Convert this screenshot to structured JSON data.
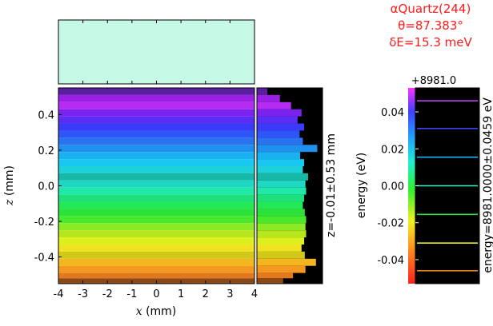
{
  "chart_data": {
    "type": "heatmap",
    "annotation": {
      "crystal": "αQuartz(244)",
      "theta": "θ=87.383°",
      "dE": "δE=15.3 meV"
    },
    "main_plot": {
      "xlabel": "x (mm)",
      "ylabel": "z (mm)",
      "xlim": [
        -4,
        4
      ],
      "ylim": [
        -0.55,
        0.55
      ],
      "xticks": [
        -4,
        -3,
        -2,
        -1,
        0,
        1,
        2,
        3,
        4
      ],
      "xtick_labels": [
        "-4",
        "-3",
        "-2",
        "-1",
        "0",
        "1",
        "2",
        "3",
        "4"
      ],
      "yticks": [
        0.4,
        0.2,
        0.0,
        -0.2,
        -0.4
      ],
      "ytick_labels": [
        "0.4",
        "0.2",
        "0.0",
        "-0.2",
        "-0.4"
      ],
      "bands": [
        {
          "z0": 0.51,
          "z1": 0.55,
          "color": "#5a1fa0"
        },
        {
          "z0": 0.47,
          "z1": 0.51,
          "color": "#9c1fe6"
        },
        {
          "z0": 0.43,
          "z1": 0.47,
          "color": "#b42cf2"
        },
        {
          "z0": 0.39,
          "z1": 0.43,
          "color": "#7a23ef"
        },
        {
          "z0": 0.35,
          "z1": 0.39,
          "color": "#5a2cf5"
        },
        {
          "z0": 0.31,
          "z1": 0.35,
          "color": "#3a3af8"
        },
        {
          "z0": 0.27,
          "z1": 0.31,
          "color": "#2e55f7"
        },
        {
          "z0": 0.23,
          "z1": 0.27,
          "color": "#2a72f0"
        },
        {
          "z0": 0.19,
          "z1": 0.23,
          "color": "#1f90ee"
        },
        {
          "z0": 0.15,
          "z1": 0.19,
          "color": "#1bb0ef"
        },
        {
          "z0": 0.11,
          "z1": 0.15,
          "color": "#19c8f0"
        },
        {
          "z0": 0.07,
          "z1": 0.11,
          "color": "#1ed0d8"
        },
        {
          "z0": 0.03,
          "z1": 0.07,
          "color": "#16b8a8"
        },
        {
          "z0": -0.01,
          "z1": 0.03,
          "color": "#1fd8c4"
        },
        {
          "z0": -0.05,
          "z1": -0.01,
          "color": "#1fe8a8"
        },
        {
          "z0": -0.09,
          "z1": -0.05,
          "color": "#1ee07a"
        },
        {
          "z0": -0.13,
          "z1": -0.09,
          "color": "#24e855"
        },
        {
          "z0": -0.17,
          "z1": -0.13,
          "color": "#2ae23a"
        },
        {
          "z0": -0.21,
          "z1": -0.17,
          "color": "#48e82c"
        },
        {
          "z0": -0.25,
          "z1": -0.21,
          "color": "#8aea26"
        },
        {
          "z0": -0.29,
          "z1": -0.25,
          "color": "#b6e61c"
        },
        {
          "z0": -0.33,
          "z1": -0.29,
          "color": "#dcf01e"
        },
        {
          "z0": -0.37,
          "z1": -0.33,
          "color": "#f0e21e"
        },
        {
          "z0": -0.41,
          "z1": -0.37,
          "color": "#d2c81a"
        },
        {
          "z0": -0.45,
          "z1": -0.41,
          "color": "#f4b61e"
        },
        {
          "z0": -0.49,
          "z1": -0.45,
          "color": "#f49820"
        },
        {
          "z0": -0.52,
          "z1": -0.49,
          "color": "#e4781e"
        },
        {
          "z0": -0.55,
          "z1": -0.52,
          "color": "#8a4a18"
        }
      ]
    },
    "top_histogram": {
      "fill_color": "#c6f8e6"
    },
    "side_histogram": {
      "label": "z=-0.01±0.53 mm",
      "bin_counts": [
        0.16,
        0.35,
        0.52,
        0.68,
        0.62,
        0.72,
        0.65,
        0.7,
        0.92,
        0.66,
        0.72,
        0.7,
        0.78,
        0.74,
        0.75,
        0.72,
        0.7,
        0.73,
        0.75,
        0.74,
        0.75,
        0.72,
        0.68,
        0.73,
        0.9,
        0.74,
        0.55,
        0.4
      ]
    },
    "energy_plot": {
      "ylabel": "energy (eV)",
      "offset_label": "+8981.0",
      "ylim": [
        -0.053,
        0.053
      ],
      "yticks": [
        0.04,
        0.02,
        0.0,
        -0.02,
        -0.04
      ],
      "ytick_labels": [
        "0.04",
        "0.02",
        "0.00",
        "-0.02",
        "-0.04"
      ],
      "right_label": "energy=8981.0000±0.0459 eV",
      "colorbar_range": [
        -0.053,
        0.053
      ],
      "lines": [
        {
          "e": 0.046,
          "color": "#c040f0"
        },
        {
          "e": 0.031,
          "color": "#4040ff"
        },
        {
          "e": 0.0155,
          "color": "#20b8f0"
        },
        {
          "e": 0.0,
          "color": "#30f0c8"
        },
        {
          "e": -0.0155,
          "color": "#30e040"
        },
        {
          "e": -0.031,
          "color": "#e8f020"
        },
        {
          "e": -0.046,
          "color": "#f08020"
        }
      ]
    }
  }
}
